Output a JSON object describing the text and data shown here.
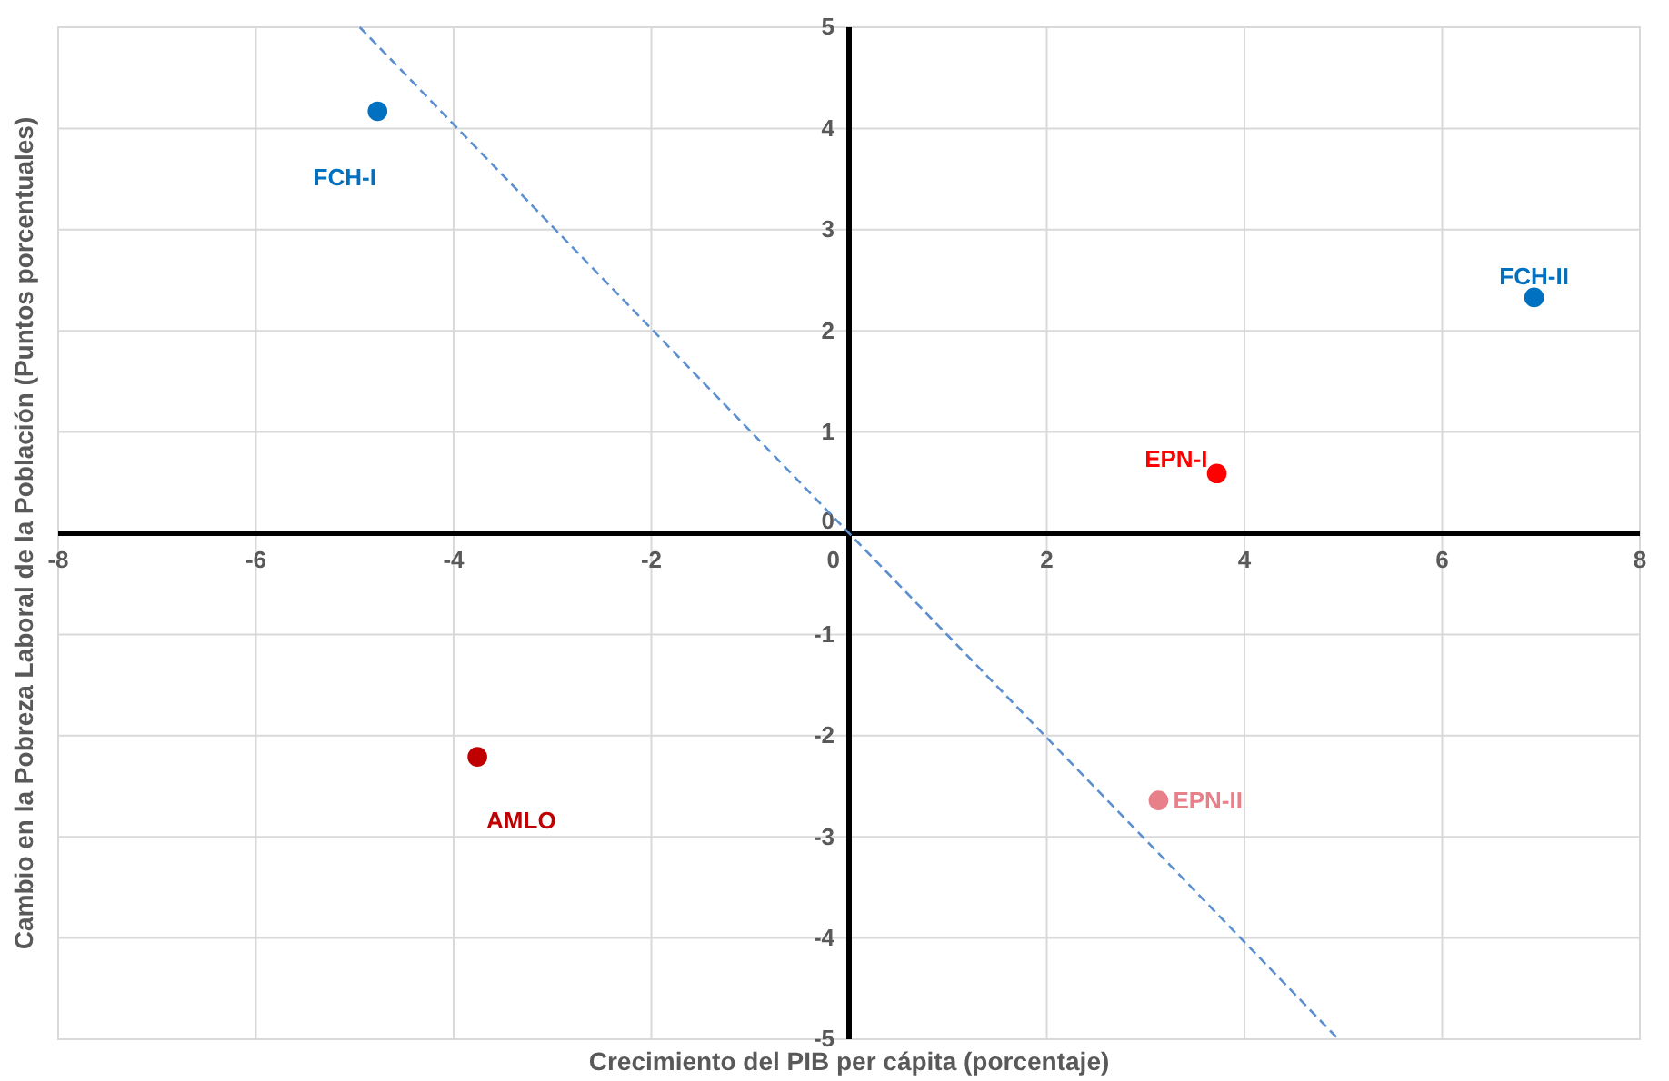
{
  "chart_data": {
    "type": "scatter",
    "xlabel": "Crecimiento del PIB per cápita (porcentaje)",
    "ylabel": "Cambio en la Pobreza Laboral de la Población (Puntos porcentuales)",
    "xlim": [
      -8,
      8
    ],
    "ylim": [
      -5,
      5
    ],
    "xticks": [
      -8,
      -6,
      -4,
      -2,
      0,
      2,
      4,
      6,
      8
    ],
    "yticks": [
      -5,
      -4,
      -3,
      -2,
      -1,
      0,
      1,
      2,
      3,
      4,
      5
    ],
    "grid": true,
    "marker": "circle",
    "series": [
      {
        "name": "FCH-I",
        "color": "#0070c0",
        "x": [
          -4.77
        ],
        "values": [
          4.17
        ]
      },
      {
        "name": "FCH-II",
        "color": "#0070c0",
        "x": [
          6.93
        ],
        "values": [
          2.33
        ]
      },
      {
        "name": "EPN-I",
        "color": "#ff0000",
        "x": [
          3.72
        ],
        "values": [
          0.59
        ]
      },
      {
        "name": "EPN-II",
        "color": "#e8808a",
        "x": [
          3.13
        ],
        "values": [
          -2.64
        ]
      },
      {
        "name": "AMLO",
        "color": "#c00000",
        "x": [
          -3.76
        ],
        "values": [
          -2.21
        ]
      },
      {
        "type": "line",
        "color": "#5b8fcf",
        "line_style": "dashed",
        "marker": "none",
        "x": [
          -4.95,
          4.95
        ],
        "values": [
          5,
          -5
        ]
      }
    ]
  }
}
